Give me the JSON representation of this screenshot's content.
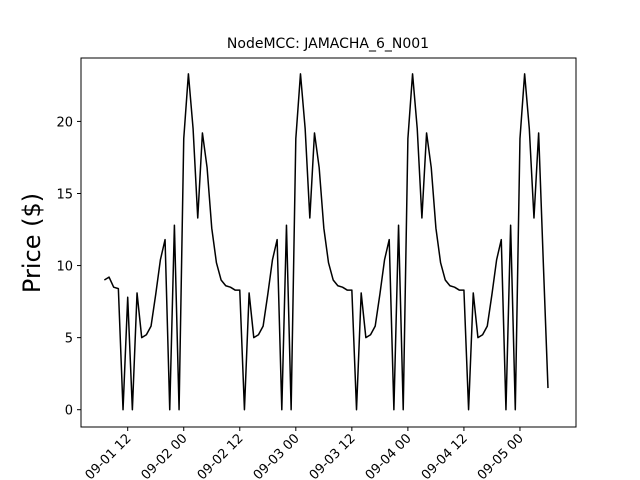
{
  "chart_data": {
    "type": "line",
    "title": "NodeMCC: JAMACHA_6_N001",
    "y_label": "Price ($)",
    "x": [
      "09-01 07",
      "09-01 08",
      "09-01 09",
      "09-01 10",
      "09-01 11",
      "09-01 12",
      "09-01 13",
      "09-01 14",
      "09-01 15",
      "09-01 16",
      "09-01 17",
      "09-01 18",
      "09-01 19",
      "09-01 20",
      "09-01 21",
      "09-01 22",
      "09-01 23",
      "09-02 00",
      "09-02 01",
      "09-02 02",
      "09-02 03",
      "09-02 04",
      "09-02 05",
      "09-02 06",
      "09-02 07",
      "09-02 08",
      "09-02 09",
      "09-02 10",
      "09-02 11",
      "09-02 12",
      "09-02 13",
      "09-02 14",
      "09-02 15",
      "09-02 16",
      "09-02 17",
      "09-02 18",
      "09-02 19",
      "09-02 20",
      "09-02 21",
      "09-02 22",
      "09-02 23",
      "09-03 00",
      "09-03 01",
      "09-03 02",
      "09-03 03",
      "09-03 04",
      "09-03 05",
      "09-03 06",
      "09-03 07",
      "09-03 08",
      "09-03 09",
      "09-03 10",
      "09-03 11",
      "09-03 12",
      "09-03 13",
      "09-03 14",
      "09-03 15",
      "09-03 16",
      "09-03 17",
      "09-03 18",
      "09-03 19",
      "09-03 20",
      "09-03 21",
      "09-03 22",
      "09-03 23",
      "09-04 00",
      "09-04 01",
      "09-04 02",
      "09-04 03",
      "09-04 04",
      "09-04 05",
      "09-04 06",
      "09-04 07",
      "09-04 08",
      "09-04 09",
      "09-04 10",
      "09-04 11",
      "09-04 12",
      "09-04 13",
      "09-04 14",
      "09-04 15",
      "09-04 16",
      "09-04 17",
      "09-04 18",
      "09-04 19",
      "09-04 20",
      "09-04 21",
      "09-04 22",
      "09-04 23",
      "09-05 00",
      "09-05 01",
      "09-05 02",
      "09-05 03",
      "09-05 04",
      "09-05 05",
      "09-05 06"
    ],
    "series": [
      {
        "name": "Price",
        "color": "#000000",
        "values": [
          9.0,
          9.2,
          8.5,
          8.4,
          0,
          7.8,
          0,
          8.1,
          5.0,
          5.2,
          5.8,
          8.0,
          10.4,
          11.8,
          0,
          12.8,
          0,
          18.8,
          23.3,
          19.5,
          13.3,
          19.2,
          16.8,
          12.6,
          10.2,
          9.0,
          8.6,
          8.5,
          8.3,
          8.3,
          0,
          8.1,
          5.0,
          5.2,
          5.8,
          8.0,
          10.4,
          11.8,
          0,
          12.8,
          0,
          18.8,
          23.3,
          19.5,
          13.3,
          19.2,
          16.8,
          12.6,
          10.2,
          9.0,
          8.6,
          8.5,
          8.3,
          8.3,
          0,
          8.1,
          5.0,
          5.2,
          5.8,
          8.0,
          10.4,
          11.8,
          0,
          12.8,
          0,
          18.8,
          23.3,
          19.5,
          13.3,
          19.2,
          16.8,
          12.6,
          10.2,
          9.0,
          8.6,
          8.5,
          8.3,
          8.3,
          0,
          8.1,
          5.0,
          5.2,
          5.8,
          8.0,
          10.4,
          11.8,
          0,
          12.8,
          0,
          18.8,
          23.3,
          19.5,
          13.3,
          19.2,
          10.2,
          1.5
        ]
      }
    ],
    "xlim": [
      "09-01 02",
      "09-05 12"
    ],
    "xticks": [
      "09-01 12",
      "09-02 00",
      "09-02 12",
      "09-03 00",
      "09-03 12",
      "09-04 00",
      "09-04 12",
      "09-05 00"
    ],
    "ylim": [
      -1.2,
      24.4
    ],
    "yticks": [
      0,
      5,
      10,
      15,
      20
    ],
    "grid": false
  }
}
